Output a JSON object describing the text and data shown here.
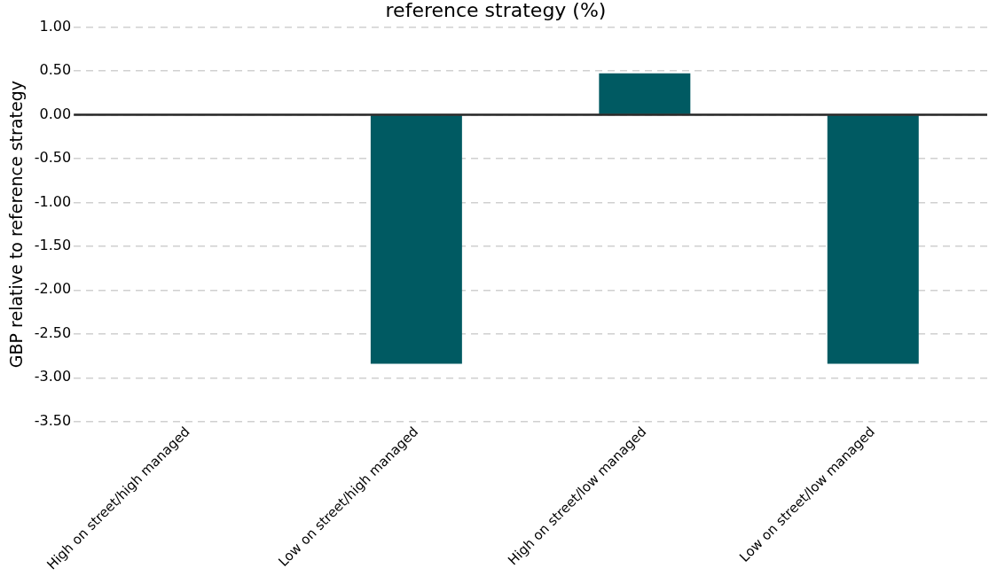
{
  "chart_data": {
    "type": "bar",
    "title": "reference strategy (%)",
    "ylabel": "GBP relative to reference strategy",
    "categories": [
      "High on street/high managed",
      "Low on street/high managed",
      "High on street/low managed",
      "Low on street/low managed"
    ],
    "values": [
      0,
      -2.84,
      0.47,
      -2.84
    ],
    "color": "#005a62",
    "ylim": [
      -3.5,
      1
    ],
    "yticks": [
      {
        "value": 1,
        "label": "1.00"
      },
      {
        "value": 0.5,
        "label": "0.50"
      },
      {
        "value": 0,
        "label": "0.00"
      },
      {
        "value": -0.5,
        "label": "-0.50"
      },
      {
        "value": -1,
        "label": "-1.00"
      },
      {
        "value": -1.5,
        "label": "-1.50"
      },
      {
        "value": -2,
        "label": "-2.00"
      },
      {
        "value": -2.5,
        "label": "-2.50"
      },
      {
        "value": -3,
        "label": "-3.00"
      },
      {
        "value": -3.5,
        "label": "-3.50"
      }
    ],
    "grid": "y",
    "ref_lines": [
      {
        "axis": "y",
        "value": 0,
        "color": "#262626"
      }
    ]
  }
}
